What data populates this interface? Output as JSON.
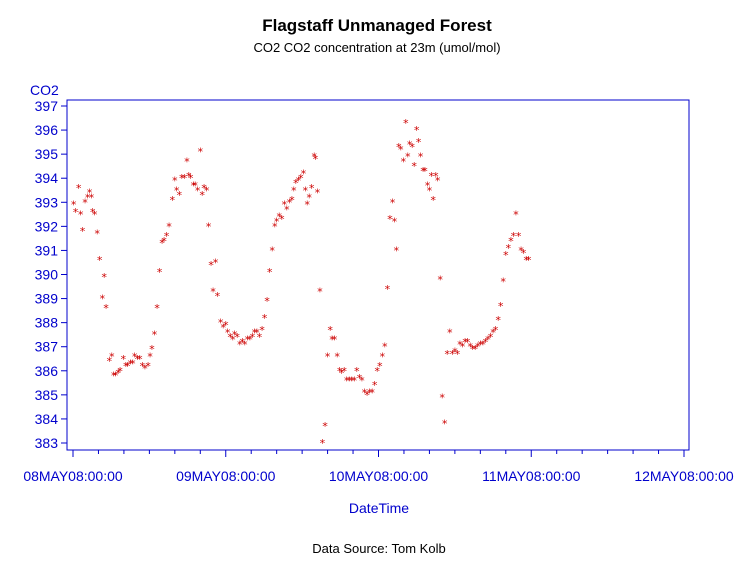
{
  "chart_data": {
    "type": "scatter",
    "title": "Flagstaff Unmanaged Forest",
    "subtitle": "CO2 CO2 concentration at 23m (umol/mol)",
    "xlabel": "DateTime",
    "ylabel": "CO2",
    "footnote": "Data Source: Tom Kolb",
    "marker": "*",
    "marker_color": "#cc0000",
    "axis_color": "#0000cc",
    "grid": false,
    "xlim": [
      0,
      96
    ],
    "ylim": [
      383,
      397
    ],
    "x_ticks": [
      {
        "hour": 0,
        "label": "08MAY08:00:00"
      },
      {
        "hour": 24,
        "label": "09MAY08:00:00"
      },
      {
        "hour": 48,
        "label": "10MAY08:00:00"
      },
      {
        "hour": 72,
        "label": "11MAY08:00:00"
      },
      {
        "hour": 96,
        "label": "12MAY08:00:00"
      }
    ],
    "x_minor_ticks": [
      4,
      8,
      12,
      16,
      20,
      28,
      32,
      36,
      40,
      44,
      52,
      56,
      60,
      64,
      68,
      76,
      80,
      84,
      88,
      92
    ],
    "y_ticks": [
      383,
      384,
      385,
      386,
      387,
      388,
      389,
      390,
      391,
      392,
      393,
      394,
      395,
      396,
      397
    ],
    "points": [
      [
        0.1,
        392.9
      ],
      [
        0.4,
        392.6
      ],
      [
        0.9,
        393.6
      ],
      [
        1.2,
        392.5
      ],
      [
        1.5,
        391.8
      ],
      [
        1.9,
        393.0
      ],
      [
        2.3,
        393.2
      ],
      [
        2.6,
        393.4
      ],
      [
        2.9,
        393.2
      ],
      [
        3.1,
        392.6
      ],
      [
        3.4,
        392.5
      ],
      [
        3.8,
        391.7
      ],
      [
        4.2,
        390.6
      ],
      [
        4.6,
        389.0
      ],
      [
        4.9,
        389.9
      ],
      [
        5.2,
        388.6
      ],
      [
        5.7,
        386.4
      ],
      [
        6.1,
        386.6
      ],
      [
        6.4,
        385.8
      ],
      [
        6.7,
        385.8
      ],
      [
        7.1,
        385.9
      ],
      [
        7.4,
        386.0
      ],
      [
        7.9,
        386.5
      ],
      [
        8.3,
        386.2
      ],
      [
        8.6,
        386.2
      ],
      [
        9.0,
        386.3
      ],
      [
        9.4,
        386.3
      ],
      [
        9.7,
        386.6
      ],
      [
        10.1,
        386.5
      ],
      [
        10.5,
        386.5
      ],
      [
        10.9,
        386.2
      ],
      [
        11.3,
        386.1
      ],
      [
        11.8,
        386.2
      ],
      [
        12.1,
        386.6
      ],
      [
        12.4,
        386.9
      ],
      [
        12.8,
        387.5
      ],
      [
        13.2,
        388.6
      ],
      [
        13.6,
        390.1
      ],
      [
        14.0,
        391.3
      ],
      [
        14.3,
        391.4
      ],
      [
        14.7,
        391.6
      ],
      [
        15.1,
        392.0
      ],
      [
        15.6,
        393.1
      ],
      [
        16.0,
        393.9
      ],
      [
        16.3,
        393.5
      ],
      [
        16.7,
        393.3
      ],
      [
        17.1,
        394.0
      ],
      [
        17.5,
        394.0
      ],
      [
        17.9,
        394.7
      ],
      [
        18.2,
        394.1
      ],
      [
        18.5,
        394.0
      ],
      [
        18.9,
        393.7
      ],
      [
        19.2,
        393.7
      ],
      [
        19.6,
        393.5
      ],
      [
        20.0,
        395.1
      ],
      [
        20.3,
        393.3
      ],
      [
        20.6,
        393.6
      ],
      [
        21.0,
        393.5
      ],
      [
        21.3,
        392.0
      ],
      [
        21.7,
        390.4
      ],
      [
        22.0,
        389.3
      ],
      [
        22.4,
        390.5
      ],
      [
        22.7,
        389.1
      ],
      [
        23.2,
        388.0
      ],
      [
        23.6,
        387.8
      ],
      [
        24.0,
        387.9
      ],
      [
        24.3,
        387.6
      ],
      [
        24.7,
        387.4
      ],
      [
        25.1,
        387.3
      ],
      [
        25.4,
        387.5
      ],
      [
        25.8,
        387.4
      ],
      [
        26.2,
        387.1
      ],
      [
        26.6,
        387.2
      ],
      [
        27.0,
        387.1
      ],
      [
        27.4,
        387.3
      ],
      [
        27.8,
        387.3
      ],
      [
        28.2,
        387.4
      ],
      [
        28.5,
        387.6
      ],
      [
        28.9,
        387.6
      ],
      [
        29.3,
        387.4
      ],
      [
        29.7,
        387.7
      ],
      [
        30.1,
        388.2
      ],
      [
        30.5,
        388.9
      ],
      [
        30.9,
        390.1
      ],
      [
        31.3,
        391.0
      ],
      [
        31.7,
        392.0
      ],
      [
        32.0,
        392.2
      ],
      [
        32.4,
        392.4
      ],
      [
        32.8,
        392.3
      ],
      [
        33.2,
        392.9
      ],
      [
        33.6,
        392.7
      ],
      [
        34.0,
        393.0
      ],
      [
        34.4,
        393.1
      ],
      [
        34.7,
        393.5
      ],
      [
        35.0,
        393.8
      ],
      [
        35.4,
        393.9
      ],
      [
        35.8,
        394.0
      ],
      [
        36.2,
        394.2
      ],
      [
        36.5,
        393.5
      ],
      [
        36.8,
        392.9
      ],
      [
        37.1,
        393.2
      ],
      [
        37.5,
        393.6
      ],
      [
        37.9,
        394.9
      ],
      [
        38.1,
        394.8
      ],
      [
        38.4,
        393.4
      ],
      [
        38.8,
        389.3
      ],
      [
        39.2,
        383.0
      ],
      [
        39.6,
        383.7
      ],
      [
        40.0,
        386.6
      ],
      [
        40.4,
        387.7
      ],
      [
        40.7,
        387.3
      ],
      [
        41.1,
        387.3
      ],
      [
        41.5,
        386.6
      ],
      [
        41.9,
        386.0
      ],
      [
        42.2,
        385.9
      ],
      [
        42.6,
        386.0
      ],
      [
        43.0,
        385.6
      ],
      [
        43.4,
        385.6
      ],
      [
        43.8,
        385.6
      ],
      [
        44.2,
        385.6
      ],
      [
        44.6,
        386.0
      ],
      [
        45.0,
        385.7
      ],
      [
        45.4,
        385.6
      ],
      [
        45.8,
        385.1
      ],
      [
        46.2,
        385.0
      ],
      [
        46.6,
        385.1
      ],
      [
        47.0,
        385.1
      ],
      [
        47.4,
        385.4
      ],
      [
        47.8,
        386.0
      ],
      [
        48.2,
        386.2
      ],
      [
        48.6,
        386.6
      ],
      [
        49.0,
        387.0
      ],
      [
        49.4,
        389.4
      ],
      [
        49.8,
        392.3
      ],
      [
        50.2,
        393.0
      ],
      [
        50.5,
        392.2
      ],
      [
        50.8,
        391.0
      ],
      [
        51.2,
        395.3
      ],
      [
        51.5,
        395.2
      ],
      [
        51.9,
        394.7
      ],
      [
        52.3,
        396.3
      ],
      [
        52.6,
        394.9
      ],
      [
        52.9,
        395.4
      ],
      [
        53.3,
        395.3
      ],
      [
        53.6,
        394.5
      ],
      [
        54.0,
        396.0
      ],
      [
        54.3,
        395.5
      ],
      [
        54.6,
        394.9
      ],
      [
        55.0,
        394.3
      ],
      [
        55.3,
        394.3
      ],
      [
        55.7,
        393.7
      ],
      [
        56.0,
        393.5
      ],
      [
        56.3,
        394.1
      ],
      [
        56.6,
        393.1
      ],
      [
        57.0,
        394.1
      ],
      [
        57.3,
        393.9
      ],
      [
        57.7,
        389.8
      ],
      [
        58.0,
        384.9
      ],
      [
        58.4,
        383.8
      ],
      [
        58.8,
        386.7
      ],
      [
        59.2,
        387.6
      ],
      [
        59.6,
        386.7
      ],
      [
        60.0,
        386.8
      ],
      [
        60.4,
        386.7
      ],
      [
        60.8,
        387.1
      ],
      [
        61.2,
        387.0
      ],
      [
        61.6,
        387.2
      ],
      [
        62.0,
        387.2
      ],
      [
        62.4,
        387.0
      ],
      [
        62.8,
        386.9
      ],
      [
        63.2,
        386.9
      ],
      [
        63.6,
        387.0
      ],
      [
        64.0,
        387.1
      ],
      [
        64.4,
        387.1
      ],
      [
        64.8,
        387.2
      ],
      [
        65.2,
        387.3
      ],
      [
        65.6,
        387.4
      ],
      [
        66.0,
        387.6
      ],
      [
        66.4,
        387.7
      ],
      [
        66.8,
        388.1
      ],
      [
        67.2,
        388.7
      ],
      [
        67.6,
        389.7
      ],
      [
        68.0,
        390.8
      ],
      [
        68.4,
        391.1
      ],
      [
        68.8,
        391.4
      ],
      [
        69.2,
        391.6
      ],
      [
        69.6,
        392.5
      ],
      [
        70.0,
        391.6
      ],
      [
        70.4,
        391.0
      ],
      [
        70.8,
        390.9
      ],
      [
        71.2,
        390.6
      ],
      [
        71.6,
        390.6
      ]
    ]
  }
}
